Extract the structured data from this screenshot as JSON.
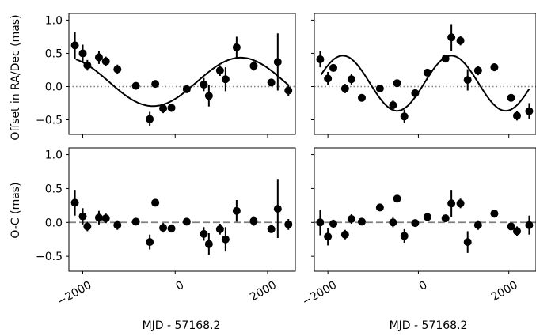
{
  "chart_data": [
    {
      "type": "scatter",
      "panel": "top-left",
      "ylabel": "Offset in RA/Dec (mas)",
      "xlim": [
        -2300,
        2600
      ],
      "ylim": [
        -0.72,
        1.1
      ],
      "xticks": [
        -2000,
        0,
        2000
      ],
      "xticklabels": [
        "−2000",
        "0",
        "2000"
      ],
      "xticklabels_shown": false,
      "yticks": [
        -0.5,
        0.0,
        0.5,
        1.0
      ],
      "yticklabels": [
        "−0.5",
        "0.0",
        "0.5",
        "1.0"
      ],
      "reference_line": {
        "y": 0,
        "style": "dotted",
        "color": "#808080"
      },
      "model_curve": {
        "type": "sinusoid",
        "x_range": [
          -2150,
          2450
        ]
      },
      "points": [
        {
          "x": -2170,
          "y": 0.62,
          "err": 0.2
        },
        {
          "x": -2000,
          "y": 0.5,
          "err": 0.13
        },
        {
          "x": -1900,
          "y": 0.32,
          "err": 0.08
        },
        {
          "x": -1650,
          "y": 0.44,
          "err": 0.1
        },
        {
          "x": -1500,
          "y": 0.38,
          "err": 0.07
        },
        {
          "x": -1250,
          "y": 0.26,
          "err": 0.07
        },
        {
          "x": -850,
          "y": 0.01,
          "err": 0.05
        },
        {
          "x": -550,
          "y": -0.49,
          "err": 0.11
        },
        {
          "x": -430,
          "y": 0.04,
          "err": 0.03
        },
        {
          "x": -260,
          "y": -0.33,
          "err": 0.07
        },
        {
          "x": -80,
          "y": -0.32,
          "err": 0.06
        },
        {
          "x": 250,
          "y": -0.04,
          "err": 0.03
        },
        {
          "x": 620,
          "y": 0.03,
          "err": 0.1
        },
        {
          "x": 730,
          "y": -0.14,
          "err": 0.16
        },
        {
          "x": 970,
          "y": 0.24,
          "err": 0.08
        },
        {
          "x": 1090,
          "y": 0.11,
          "err": 0.18
        },
        {
          "x": 1330,
          "y": 0.59,
          "err": 0.16
        },
        {
          "x": 1700,
          "y": 0.31,
          "err": 0.07
        },
        {
          "x": 2080,
          "y": 0.06,
          "err": 0.03
        },
        {
          "x": 2220,
          "y": 0.37,
          "err": 0.43
        },
        {
          "x": 2450,
          "y": -0.06,
          "err": 0.08
        }
      ]
    },
    {
      "type": "scatter",
      "panel": "top-right",
      "xlim": [
        -2300,
        2600
      ],
      "ylim": [
        -0.72,
        1.1
      ],
      "xticks": [
        -2000,
        0,
        2000
      ],
      "xticklabels": [
        "−2000",
        "0",
        "2000"
      ],
      "xticklabels_shown": false,
      "yticks": [
        -0.5,
        0.0,
        0.5,
        1.0
      ],
      "reference_line": {
        "y": 0,
        "style": "dotted",
        "color": "#808080"
      },
      "model_curve": {
        "type": "sinusoid",
        "x_range": [
          -2150,
          2450
        ]
      },
      "points": [
        {
          "x": -2170,
          "y": 0.41,
          "err": 0.12
        },
        {
          "x": -2000,
          "y": 0.12,
          "err": 0.1
        },
        {
          "x": -1880,
          "y": 0.28,
          "err": 0.05
        },
        {
          "x": -1620,
          "y": -0.03,
          "err": 0.07
        },
        {
          "x": -1480,
          "y": 0.11,
          "err": 0.08
        },
        {
          "x": -1250,
          "y": -0.17,
          "err": 0.04
        },
        {
          "x": -850,
          "y": -0.03,
          "err": 0.05
        },
        {
          "x": -560,
          "y": -0.28,
          "err": 0.07
        },
        {
          "x": -470,
          "y": 0.05,
          "err": 0.03
        },
        {
          "x": -310,
          "y": -0.45,
          "err": 0.1
        },
        {
          "x": -70,
          "y": -0.1,
          "err": 0.04
        },
        {
          "x": 200,
          "y": 0.21,
          "err": 0.04
        },
        {
          "x": 600,
          "y": 0.42,
          "err": 0.05
        },
        {
          "x": 730,
          "y": 0.74,
          "err": 0.2
        },
        {
          "x": 930,
          "y": 0.69,
          "err": 0.07
        },
        {
          "x": 1090,
          "y": 0.1,
          "err": 0.16
        },
        {
          "x": 1320,
          "y": 0.24,
          "err": 0.07
        },
        {
          "x": 1680,
          "y": 0.29,
          "err": 0.06
        },
        {
          "x": 2050,
          "y": -0.17,
          "err": 0.03
        },
        {
          "x": 2180,
          "y": -0.44,
          "err": 0.07
        },
        {
          "x": 2450,
          "y": -0.37,
          "err": 0.12
        }
      ]
    },
    {
      "type": "scatter",
      "panel": "bottom-left",
      "ylabel": "O-C (mas)",
      "xlabel": "MJD - 57168.2",
      "xlim": [
        -2300,
        2600
      ],
      "ylim": [
        -0.72,
        1.1
      ],
      "xticks": [
        -2000,
        0,
        2000
      ],
      "xticklabels": [
        "−2000",
        "0",
        "2000"
      ],
      "xticklabels_shown": true,
      "yticks": [
        -0.5,
        0.0,
        0.5,
        1.0
      ],
      "yticklabels": [
        "−0.5",
        "0.0",
        "0.5",
        "1.0"
      ],
      "reference_line": {
        "y": 0,
        "style": "dashed",
        "color": "#808080"
      },
      "points": [
        {
          "x": -2170,
          "y": 0.29,
          "err": 0.19
        },
        {
          "x": -2000,
          "y": 0.09,
          "err": 0.12
        },
        {
          "x": -1900,
          "y": -0.06,
          "err": 0.07
        },
        {
          "x": -1650,
          "y": 0.07,
          "err": 0.1
        },
        {
          "x": -1500,
          "y": 0.06,
          "err": 0.07
        },
        {
          "x": -1250,
          "y": -0.04,
          "err": 0.07
        },
        {
          "x": -850,
          "y": 0.01,
          "err": 0.05
        },
        {
          "x": -550,
          "y": -0.29,
          "err": 0.11
        },
        {
          "x": -430,
          "y": 0.29,
          "err": 0.03
        },
        {
          "x": -260,
          "y": -0.08,
          "err": 0.07
        },
        {
          "x": -80,
          "y": -0.09,
          "err": 0.06
        },
        {
          "x": 250,
          "y": 0.01,
          "err": 0.03
        },
        {
          "x": 620,
          "y": -0.17,
          "err": 0.1
        },
        {
          "x": 730,
          "y": -0.32,
          "err": 0.16
        },
        {
          "x": 970,
          "y": -0.1,
          "err": 0.08
        },
        {
          "x": 1090,
          "y": -0.25,
          "err": 0.18
        },
        {
          "x": 1330,
          "y": 0.17,
          "err": 0.16
        },
        {
          "x": 1700,
          "y": 0.02,
          "err": 0.07
        },
        {
          "x": 2080,
          "y": -0.1,
          "err": 0.03
        },
        {
          "x": 2220,
          "y": 0.2,
          "err": 0.43
        },
        {
          "x": 2450,
          "y": -0.03,
          "err": 0.08
        }
      ]
    },
    {
      "type": "scatter",
      "panel": "bottom-right",
      "xlabel": "MJD - 57168.2",
      "xlim": [
        -2300,
        2600
      ],
      "ylim": [
        -0.72,
        1.1
      ],
      "xticks": [
        -2000,
        0,
        2000
      ],
      "xticklabels": [
        "−2000",
        "0",
        "2000"
      ],
      "xticklabels_shown": true,
      "yticks": [
        -0.5,
        0.0,
        0.5,
        1.0
      ],
      "reference_line": {
        "y": 0,
        "style": "dashed",
        "color": "#808080"
      },
      "points": [
        {
          "x": -2170,
          "y": 0.0,
          "err": 0.19
        },
        {
          "x": -2000,
          "y": -0.21,
          "err": 0.13
        },
        {
          "x": -1880,
          "y": -0.02,
          "err": 0.06
        },
        {
          "x": -1620,
          "y": -0.18,
          "err": 0.07
        },
        {
          "x": -1480,
          "y": 0.05,
          "err": 0.07
        },
        {
          "x": -1250,
          "y": 0.01,
          "err": 0.04
        },
        {
          "x": -850,
          "y": 0.22,
          "err": 0.05
        },
        {
          "x": -560,
          "y": 0.0,
          "err": 0.07
        },
        {
          "x": -470,
          "y": 0.35,
          "err": 0.03
        },
        {
          "x": -310,
          "y": -0.2,
          "err": 0.1
        },
        {
          "x": -70,
          "y": -0.01,
          "err": 0.04
        },
        {
          "x": 200,
          "y": 0.08,
          "err": 0.04
        },
        {
          "x": 600,
          "y": 0.06,
          "err": 0.05
        },
        {
          "x": 730,
          "y": 0.28,
          "err": 0.2
        },
        {
          "x": 930,
          "y": 0.28,
          "err": 0.07
        },
        {
          "x": 1090,
          "y": -0.29,
          "err": 0.16
        },
        {
          "x": 1320,
          "y": -0.04,
          "err": 0.07
        },
        {
          "x": 1680,
          "y": 0.13,
          "err": 0.06
        },
        {
          "x": 2050,
          "y": -0.06,
          "err": 0.03
        },
        {
          "x": 2180,
          "y": -0.13,
          "err": 0.07
        },
        {
          "x": 2450,
          "y": -0.04,
          "err": 0.14
        }
      ]
    }
  ],
  "colors": {
    "points": "#000000",
    "model_curve": "#000000",
    "reference_line": "#808080"
  }
}
